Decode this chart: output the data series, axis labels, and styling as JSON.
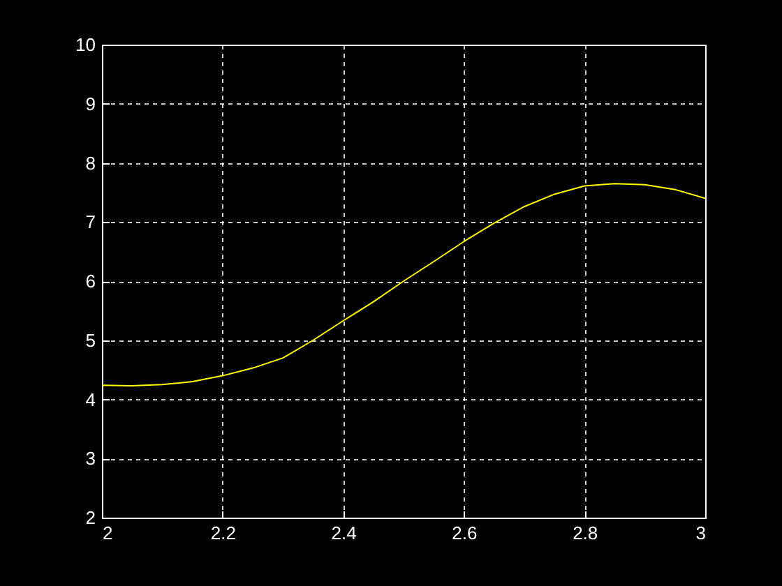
{
  "chart_data": {
    "type": "line",
    "x": [
      2,
      2.05,
      2.1,
      2.15,
      2.2,
      2.25,
      2.3,
      2.35,
      2.4,
      2.45,
      2.5,
      2.55,
      2.6,
      2.65,
      2.7,
      2.75,
      2.8,
      2.85,
      2.9,
      2.95,
      3
    ],
    "series": [
      {
        "color": "#ffff00",
        "values": [
          4.24,
          4.23,
          4.25,
          4.3,
          4.4,
          4.53,
          4.7,
          5.0,
          5.33,
          5.65,
          6.0,
          6.33,
          6.67,
          6.98,
          7.26,
          7.47,
          7.61,
          7.65,
          7.63,
          7.55,
          7.4
        ]
      }
    ],
    "xlim": [
      2,
      3
    ],
    "ylim": [
      2,
      10
    ],
    "xticks": [
      2,
      2.2,
      2.4,
      2.6,
      2.8,
      3
    ],
    "yticks": [
      2,
      3,
      4,
      5,
      6,
      7,
      8,
      9,
      10
    ],
    "grid": true
  }
}
